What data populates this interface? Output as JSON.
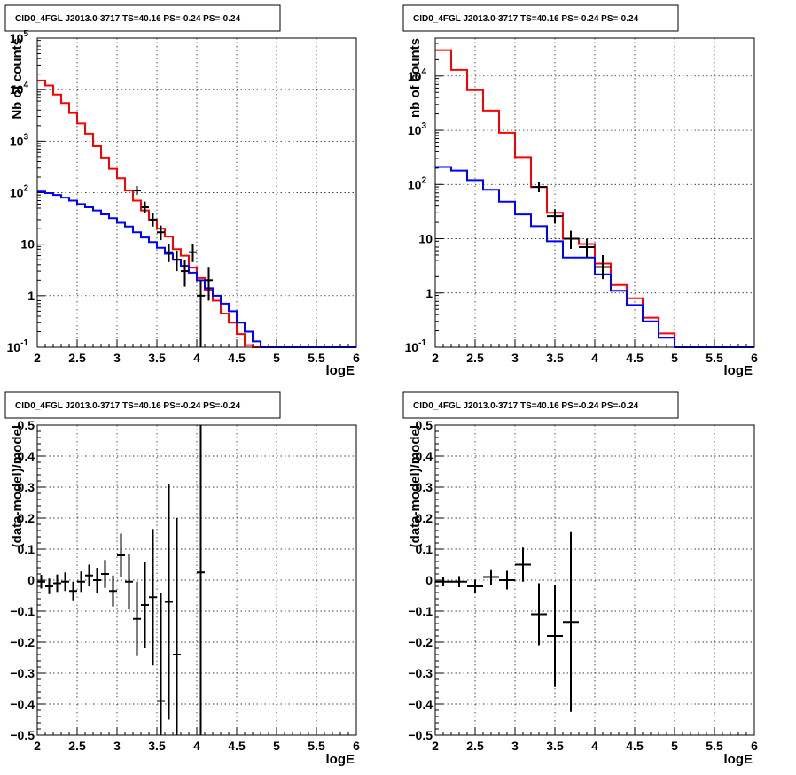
{
  "colors": {
    "total_model": "#ff0000",
    "background_model": "#0000ff",
    "data": "#000000"
  },
  "chart_data": [
    {
      "panel": "top-left",
      "type": "line",
      "title": "CID0_4FGL J2013.0-3717 TS=40.16 PS=-0.24 PS=-0.24",
      "xlabel": "logE",
      "ylabel": "Nb of counts",
      "xlim": [
        2,
        6
      ],
      "ylim": [
        0.1,
        100000
      ],
      "yscale": "log",
      "grid": true,
      "xticks": [
        "2",
        "2.5",
        "3",
        "3.5",
        "4",
        "4.5",
        "5",
        "5.5",
        "6"
      ],
      "yticks": [
        {
          "v": 0.1,
          "label": "10",
          "exp": "-1"
        },
        {
          "v": 1,
          "label": "1"
        },
        {
          "v": 10,
          "label": "10"
        },
        {
          "v": 100,
          "label": "10",
          "exp": "2"
        },
        {
          "v": 1000,
          "label": "10",
          "exp": "3"
        },
        {
          "v": 10000,
          "label": "10",
          "exp": "4"
        },
        {
          "v": 100000,
          "label": "10",
          "exp": "5"
        }
      ],
      "bin_edges": [
        2.0,
        2.1,
        2.2,
        2.3,
        2.4,
        2.5,
        2.6,
        2.7,
        2.8,
        2.9,
        3.0,
        3.1,
        3.2,
        3.3,
        3.4,
        3.5,
        3.6,
        3.7,
        3.8,
        3.9,
        4.0,
        4.1,
        4.2,
        4.3,
        4.4,
        4.5,
        4.6,
        4.7,
        4.8,
        4.9,
        5.0,
        5.1,
        5.2,
        5.3,
        5.4,
        5.5,
        5.6,
        5.7,
        5.8,
        5.9,
        6.0
      ],
      "series": [
        {
          "name": "total model",
          "color": "#ff0000",
          "style": "step",
          "values": [
            15000,
            12000,
            8000,
            5500,
            3500,
            2200,
            1400,
            800,
            480,
            290,
            190,
            110,
            70,
            45,
            30,
            20,
            14,
            8,
            6,
            3.5,
            2.2,
            1.3,
            0.8,
            0.45,
            0.3,
            0.18,
            0.11,
            0.1,
            0.1,
            0.1,
            0.1,
            0.1,
            0.1,
            0.1,
            0.1,
            0.1,
            0.1,
            0.1,
            0.1,
            0.1
          ]
        },
        {
          "name": "background model",
          "color": "#0000ff",
          "style": "step",
          "values": [
            105,
            98,
            90,
            80,
            70,
            60,
            52,
            45,
            38,
            32,
            26,
            22,
            17,
            13.5,
            11,
            8.5,
            6.5,
            5,
            3.8,
            2.8,
            2,
            1.4,
            1,
            0.7,
            0.5,
            0.3,
            0.2,
            0.13,
            0.1,
            0.1,
            0.1,
            0.1,
            0.1,
            0.1,
            0.1,
            0.1,
            0.1,
            0.1,
            0.1,
            0.1
          ]
        },
        {
          "name": "data",
          "color": "#000000",
          "style": "errorbar",
          "points": [
            {
              "x": 3.25,
              "y": 110,
              "lo": 90,
              "hi": 135
            },
            {
              "x": 3.35,
              "y": 52,
              "lo": 40,
              "hi": 67
            },
            {
              "x": 3.45,
              "y": 30,
              "lo": 22,
              "hi": 40
            },
            {
              "x": 3.55,
              "y": 17,
              "lo": 12,
              "hi": 23
            },
            {
              "x": 3.65,
              "y": 7,
              "lo": 4.5,
              "hi": 10
            },
            {
              "x": 3.75,
              "y": 5,
              "lo": 3,
              "hi": 7.5
            },
            {
              "x": 3.85,
              "y": 3,
              "lo": 1.5,
              "hi": 5
            },
            {
              "x": 3.95,
              "y": 7,
              "lo": 4.5,
              "hi": 10
            },
            {
              "x": 4.05,
              "y": 1,
              "lo": 0.1,
              "hi": 2
            },
            {
              "x": 4.15,
              "y": 2,
              "lo": 0.8,
              "hi": 3.5
            }
          ]
        }
      ]
    },
    {
      "panel": "top-right",
      "type": "line",
      "title": "CID0_4FGL J2013.0-3717 TS=40.16 PS=-0.24 PS=-0.24",
      "xlabel": "logE",
      "ylabel": "nb of counts",
      "xlim": [
        2,
        6
      ],
      "ylim": [
        0.1,
        50000
      ],
      "yscale": "log",
      "grid": true,
      "xticks": [
        "2",
        "2.5",
        "3",
        "3.5",
        "4",
        "4.5",
        "5",
        "5.5",
        "6"
      ],
      "yticks": [
        {
          "v": 0.1,
          "label": "10",
          "exp": "-1"
        },
        {
          "v": 1,
          "label": "1"
        },
        {
          "v": 10,
          "label": "10"
        },
        {
          "v": 100,
          "label": "10",
          "exp": "2"
        },
        {
          "v": 1000,
          "label": "10",
          "exp": "3"
        },
        {
          "v": 10000,
          "label": "10",
          "exp": "4"
        }
      ],
      "bin_edges": [
        2.0,
        2.2,
        2.4,
        2.6,
        2.8,
        3.0,
        3.2,
        3.4,
        3.6,
        3.8,
        4.0,
        4.2,
        4.4,
        4.6,
        4.8,
        5.0,
        5.2,
        5.4,
        5.6,
        5.8,
        6.0
      ],
      "series": [
        {
          "name": "total model",
          "color": "#ff0000",
          "style": "step",
          "values": [
            30000,
            13000,
            5500,
            2300,
            900,
            320,
            90,
            30,
            10,
            8,
            3.5,
            1.4,
            0.8,
            0.35,
            0.18,
            0.1,
            0.1,
            0.1,
            0.1,
            0.1
          ]
        },
        {
          "name": "background model",
          "color": "#0000ff",
          "style": "step",
          "values": [
            210,
            180,
            120,
            80,
            48,
            28,
            17,
            9,
            4.5,
            4.5,
            2.2,
            1.1,
            0.6,
            0.3,
            0.15,
            0.1,
            0.1,
            0.1,
            0.1,
            0.1
          ]
        },
        {
          "name": "data",
          "color": "#000000",
          "style": "errorbar",
          "points": [
            {
              "x": 3.3,
              "y": 90,
              "lo": 72,
              "hi": 112
            },
            {
              "x": 3.5,
              "y": 26,
              "lo": 19,
              "hi": 35
            },
            {
              "x": 3.7,
              "y": 10,
              "lo": 6.5,
              "hi": 14
            },
            {
              "x": 3.9,
              "y": 7,
              "lo": 4.5,
              "hi": 10
            },
            {
              "x": 4.1,
              "y": 3,
              "lo": 1.8,
              "hi": 5
            }
          ]
        }
      ]
    },
    {
      "panel": "bottom-left",
      "type": "scatter",
      "title": "CID0_4FGL J2013.0-3717 TS=40.16 PS=-0.24 PS=-0.24",
      "xlabel": "logE",
      "ylabel": "(data-model)/model",
      "xlim": [
        2,
        6
      ],
      "ylim": [
        -0.5,
        0.5
      ],
      "yscale": "linear",
      "grid": true,
      "xticks": [
        "2",
        "2.5",
        "3",
        "3.5",
        "4",
        "4.5",
        "5",
        "5.5",
        "6"
      ],
      "yticks": [
        {
          "v": 0.5,
          "label": "0.5"
        },
        {
          "v": 0.4,
          "label": "0.4"
        },
        {
          "v": 0.3,
          "label": "0.3"
        },
        {
          "v": 0.2,
          "label": "0.2"
        },
        {
          "v": 0.1,
          "label": "0.1"
        },
        {
          "v": 0,
          "label": "0"
        },
        {
          "v": -0.1,
          "label": "−0.1"
        },
        {
          "v": -0.2,
          "label": "−0.2"
        },
        {
          "v": -0.3,
          "label": "−0.3"
        },
        {
          "v": -0.4,
          "label": "−0.4"
        },
        {
          "v": -0.5,
          "label": "−0.5"
        }
      ],
      "bin_halfwidth": 0.05,
      "points": [
        {
          "x": 2.05,
          "y": -0.005,
          "err": 0.022
        },
        {
          "x": 2.15,
          "y": -0.02,
          "err": 0.025
        },
        {
          "x": 2.25,
          "y": -0.01,
          "err": 0.028
        },
        {
          "x": 2.35,
          "y": -0.005,
          "err": 0.03
        },
        {
          "x": 2.45,
          "y": -0.035,
          "err": 0.03
        },
        {
          "x": 2.55,
          "y": -0.005,
          "err": 0.033
        },
        {
          "x": 2.65,
          "y": 0.015,
          "err": 0.035
        },
        {
          "x": 2.75,
          "y": 0.0,
          "err": 0.04
        },
        {
          "x": 2.85,
          "y": 0.02,
          "err": 0.045
        },
        {
          "x": 2.95,
          "y": -0.035,
          "err": 0.05
        },
        {
          "x": 3.05,
          "y": 0.08,
          "err": 0.07
        },
        {
          "x": 3.15,
          "y": -0.005,
          "err": 0.09
        },
        {
          "x": 3.25,
          "y": -0.125,
          "err": 0.12
        },
        {
          "x": 3.35,
          "y": -0.08,
          "err": 0.14
        },
        {
          "x": 3.45,
          "y": -0.055,
          "err": 0.22
        },
        {
          "x": 3.55,
          "y": -0.39,
          "err": 0.35
        },
        {
          "x": 3.65,
          "y": -0.07,
          "err": 0.38
        },
        {
          "x": 3.75,
          "y": -0.24,
          "err": 0.44
        },
        {
          "x": 4.05,
          "y": 0.025,
          "err": 0.55
        }
      ]
    },
    {
      "panel": "bottom-right",
      "type": "scatter",
      "title": "CID0_4FGL J2013.0-3717 TS=40.16 PS=-0.24 PS=-0.24",
      "xlabel": "logE",
      "ylabel": "(data-model)/model",
      "xlim": [
        2,
        6
      ],
      "ylim": [
        -0.5,
        0.5
      ],
      "yscale": "linear",
      "grid": true,
      "xticks": [
        "2",
        "2.5",
        "3",
        "3.5",
        "4",
        "4.5",
        "5",
        "5.5",
        "6"
      ],
      "yticks": [
        {
          "v": 0.5,
          "label": "0.5"
        },
        {
          "v": 0.4,
          "label": "0.4"
        },
        {
          "v": 0.3,
          "label": "0.3"
        },
        {
          "v": 0.2,
          "label": "0.2"
        },
        {
          "v": 0.1,
          "label": "0.1"
        },
        {
          "v": 0,
          "label": "0"
        },
        {
          "v": -0.1,
          "label": "−0.1"
        },
        {
          "v": -0.2,
          "label": "−0.2"
        },
        {
          "v": -0.3,
          "label": "−0.3"
        },
        {
          "v": -0.4,
          "label": "−0.4"
        },
        {
          "v": -0.5,
          "label": "−0.5"
        }
      ],
      "bin_halfwidth": 0.1,
      "points": [
        {
          "x": 2.1,
          "y": -0.005,
          "err": 0.015
        },
        {
          "x": 2.3,
          "y": -0.005,
          "err": 0.018
        },
        {
          "x": 2.5,
          "y": -0.02,
          "err": 0.022
        },
        {
          "x": 2.7,
          "y": 0.01,
          "err": 0.025
        },
        {
          "x": 2.9,
          "y": 0.0,
          "err": 0.03
        },
        {
          "x": 3.1,
          "y": 0.05,
          "err": 0.055
        },
        {
          "x": 3.3,
          "y": -0.11,
          "err": 0.1
        },
        {
          "x": 3.5,
          "y": -0.18,
          "err": 0.165
        },
        {
          "x": 3.7,
          "y": -0.135,
          "err": 0.29
        }
      ]
    }
  ]
}
